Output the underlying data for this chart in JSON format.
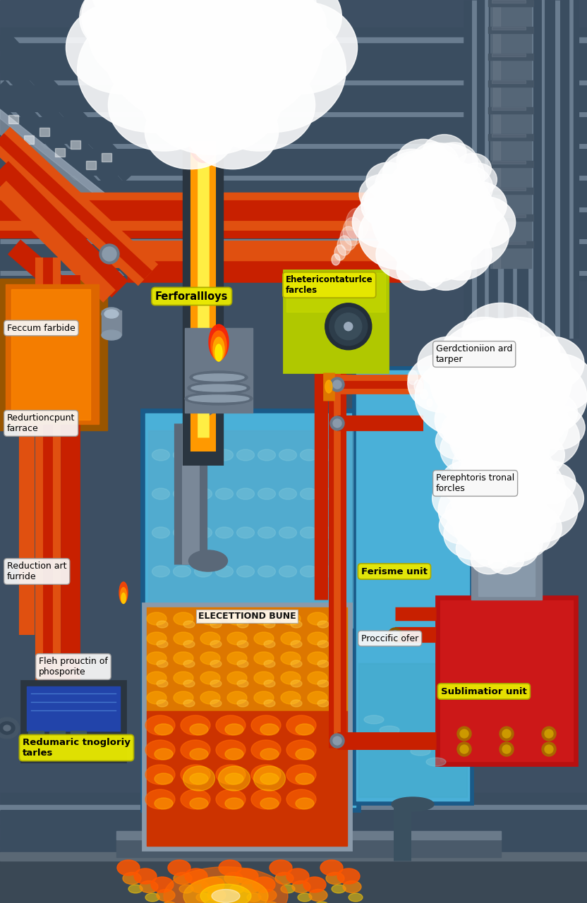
{
  "bg_color": "#3d4f63",
  "labels": {
    "ferroalloys": "Ferforallloys",
    "calcium_carbide": "Feccum farbide",
    "reduction_furnace": "Redurtioncpunt\nfarrace",
    "reduction_arc": "Reduction art\nfurride",
    "flash_production": "Fleh prouctin of\nphosporite",
    "electric_furnace": "ELECETTIOND BUNE",
    "ferisme_unit": "Ferisme unit",
    "procific_ofer": "Proccific ofer",
    "sublimation_unit": "Sublimatior unit",
    "redumaric": "Redumaric tnogloriy\ntarles",
    "ehetericon": "Ehetericontaturlce\nfarcles",
    "gerdction": "Gerdctioniion ard\ntarper",
    "perephtoris": "Perephtoris tronal\nforcles"
  },
  "colors": {
    "pipe_red": "#c82000",
    "pipe_orange": "#e05010",
    "pipe_gray_dark": "#3a4d60",
    "pipe_gray_mid": "#4a6070",
    "pipe_gray_light": "#6a7d90",
    "furnace_blue_light": "#4ab0d8",
    "furnace_blue_dark": "#2a7aaa",
    "furnace_gray": "#7a8898",
    "fire_orange": "#ff8800",
    "fire_yellow": "#ffcc00",
    "fire_red": "#ff3300",
    "lava_orange": "#ff6600",
    "lava_bright": "#ffcc00",
    "smoke_white": "#f0f0f0",
    "label_yellow_bg": "#e8e800",
    "label_white_bg": "#f8f8f8",
    "steel_dark": "#3a4855",
    "steel_mid": "#5a6875",
    "steel_light": "#8a9aaa",
    "sublimation_red": "#bb1100",
    "green_box_color": "#a8c000",
    "left_furnace_dark": "#884400",
    "electrode_orange": "#ff9900"
  }
}
